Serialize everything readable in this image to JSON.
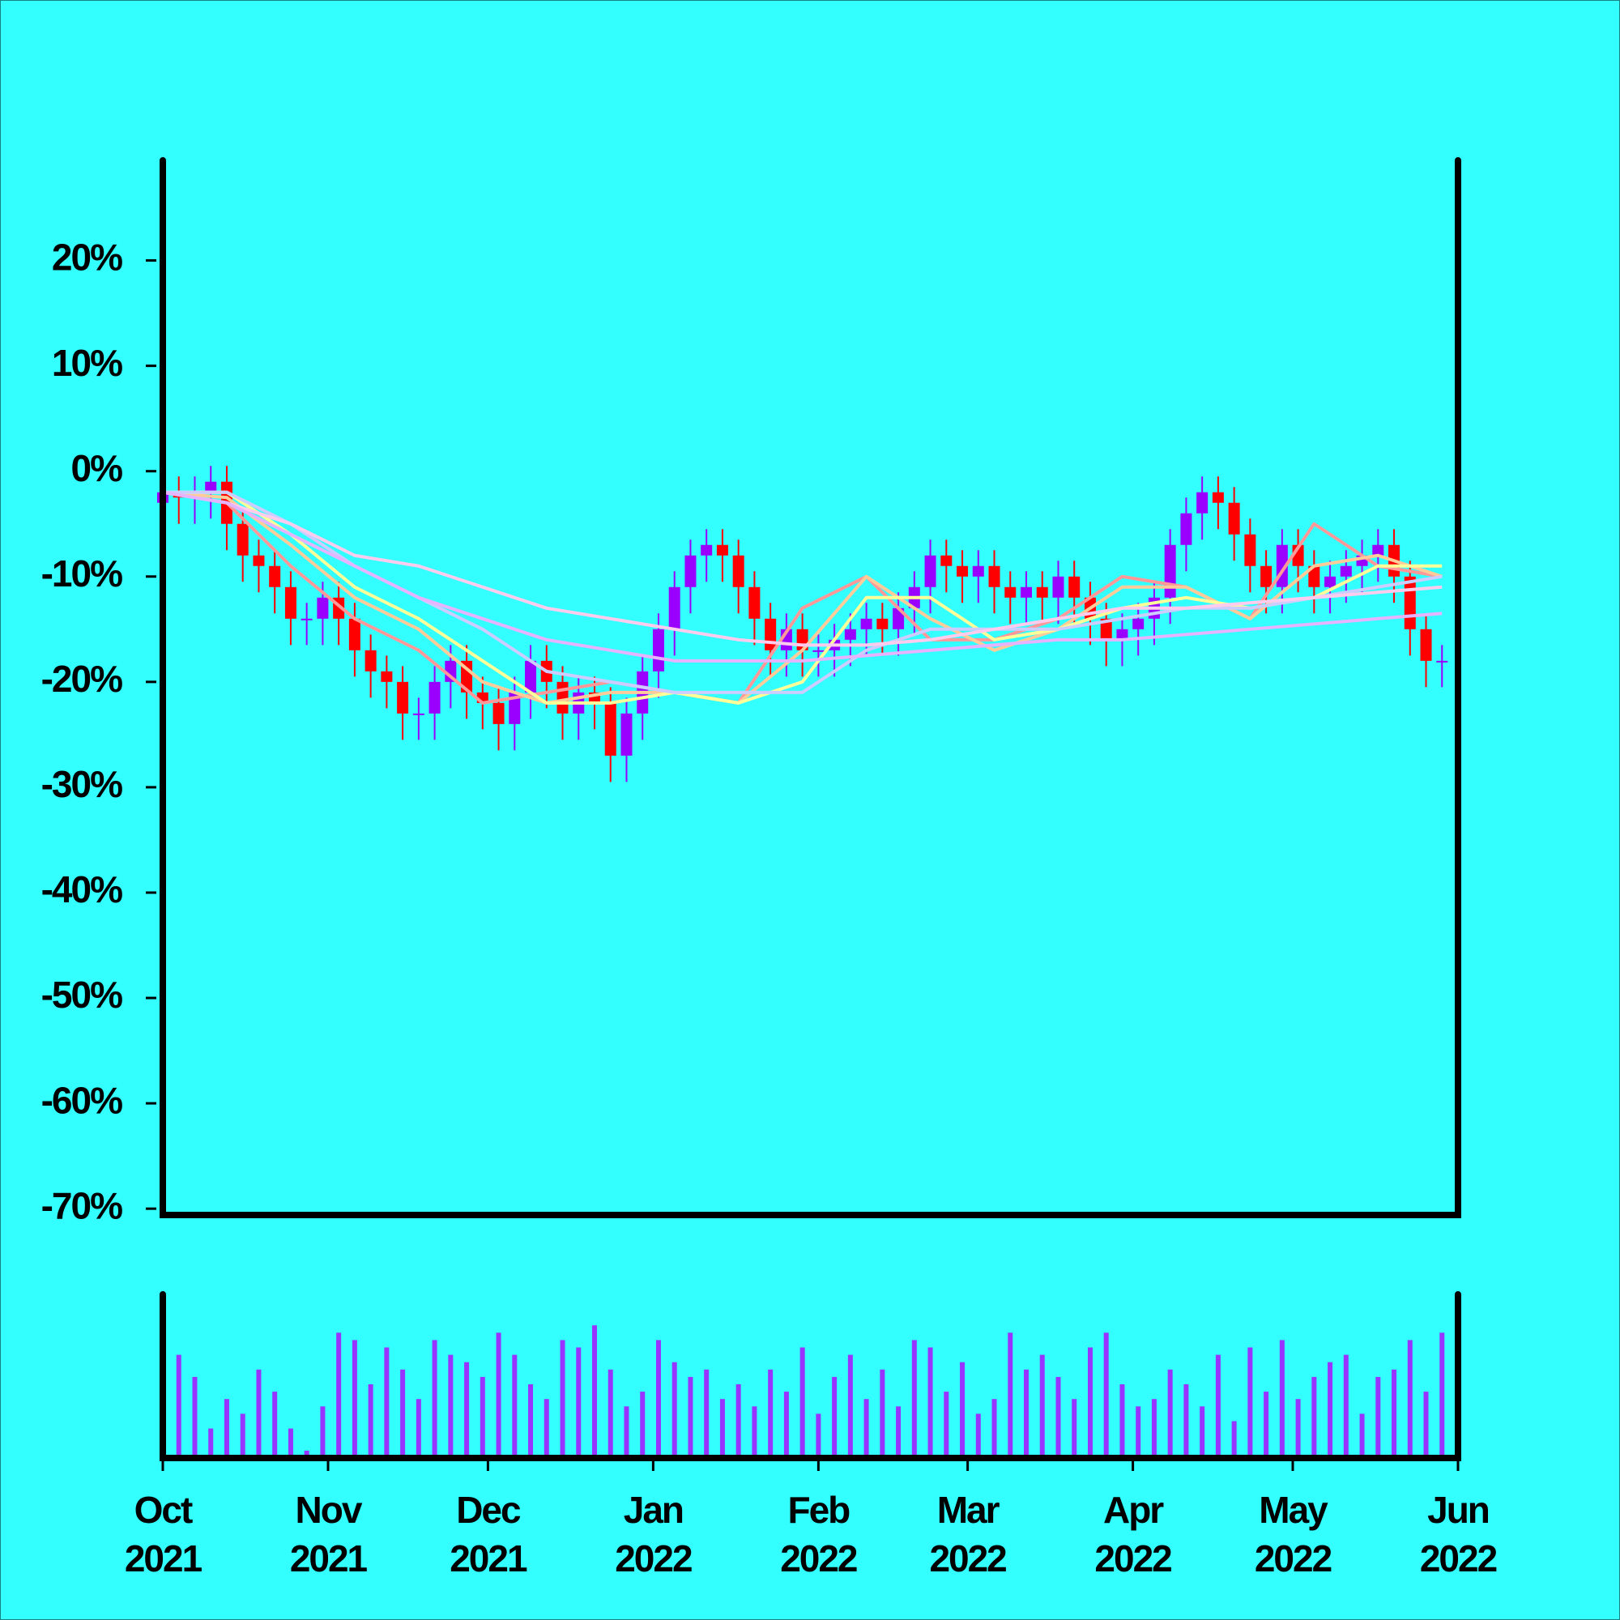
{
  "chart_data": {
    "type": "candlestick",
    "x": [
      0,
      3,
      6,
      9,
      12,
      15,
      18,
      21,
      24,
      27,
      30,
      33,
      36,
      39,
      42,
      45,
      48,
      51,
      54,
      57,
      60,
      63,
      66,
      69,
      72,
      75,
      78,
      81,
      84,
      87,
      90,
      93,
      96,
      99,
      102,
      105,
      108,
      111,
      114,
      117,
      120,
      123,
      126,
      129,
      132,
      135,
      138,
      141,
      144,
      147,
      150,
      153,
      156,
      159,
      162,
      165,
      168,
      171,
      174,
      177,
      180,
      183,
      186,
      189,
      192,
      195,
      198,
      201,
      204,
      207,
      210,
      213,
      216,
      219,
      222,
      225,
      228,
      231,
      234,
      237,
      240
    ],
    "open": [
      -3,
      -2,
      -2.5,
      -2,
      -1,
      -5,
      -8,
      -9,
      -11,
      -14,
      -14,
      -12,
      -14,
      -17,
      -19,
      -20,
      -23,
      -23,
      -20,
      -18,
      -21,
      -22,
      -24,
      -21,
      -18,
      -20,
      -23,
      -21,
      -22,
      -27,
      -23,
      -19,
      -15,
      -11,
      -8,
      -7,
      -8,
      -11,
      -14,
      -17,
      -15,
      -17,
      -17,
      -16,
      -15,
      -14,
      -15,
      -13,
      -11,
      -8,
      -9,
      -10,
      -9,
      -11,
      -12,
      -11,
      -12,
      -10,
      -12,
      -14,
      -16,
      -15,
      -14,
      -12,
      -7,
      -4,
      -2,
      -3,
      -6,
      -9,
      -11,
      -7,
      -9,
      -11,
      -10,
      -9,
      -8,
      -7,
      -10,
      -15,
      -18
    ],
    "high": [
      -0.5,
      -0.5,
      -0.5,
      0.5,
      0.5,
      -3.5,
      -6.5,
      -7.5,
      -9.5,
      -12.5,
      -10.5,
      -10.5,
      -12.5,
      -15.5,
      -17.5,
      -18.5,
      -21.5,
      -18.5,
      -16.5,
      -16.5,
      -19.5,
      -20.5,
      -19.5,
      -16.5,
      -16.5,
      -18.5,
      -19.5,
      -19.5,
      -20.5,
      -21.5,
      -17.5,
      -13.5,
      -9.5,
      -6.5,
      -5.5,
      -5.5,
      -6.5,
      -9.5,
      -12.5,
      -13.5,
      -13.5,
      -15.5,
      -14.5,
      -13.5,
      -12.5,
      -12.5,
      -11.5,
      -9.5,
      -6.5,
      -6.5,
      -7.5,
      -7.5,
      -7.5,
      -9.5,
      -9.5,
      -9.5,
      -8.5,
      -8.5,
      -10.5,
      -12.5,
      -13.5,
      -12.5,
      -10.5,
      -5.5,
      -2.5,
      -0.5,
      -0.5,
      -1.5,
      -4.5,
      -7.5,
      -5.5,
      -5.5,
      -7.5,
      -8.5,
      -7.5,
      -6.5,
      -5.5,
      -5.5,
      -8.5,
      -13.5,
      -16.5
    ],
    "low": [
      -5.5,
      -5,
      -5,
      -4.5,
      -7.5,
      -10.5,
      -11.5,
      -13.5,
      -16.5,
      -16.5,
      -16.5,
      -16.5,
      -19.5,
      -21.5,
      -22.5,
      -25.5,
      -25.5,
      -25.5,
      -22.5,
      -23.5,
      -24.5,
      -26.5,
      -26.5,
      -23.5,
      -22.5,
      -25.5,
      -25.5,
      -24.5,
      -29.5,
      -29.5,
      -25.5,
      -21.5,
      -17.5,
      -13.5,
      -10.5,
      -10.5,
      -13.5,
      -16.5,
      -19.5,
      -19.5,
      -19.5,
      -19.5,
      -19.5,
      -18.5,
      -17.5,
      -17.5,
      -17.5,
      -15.5,
      -13.5,
      -11.5,
      -12.5,
      -12.5,
      -13.5,
      -14.5,
      -14.5,
      -14.5,
      -14.5,
      -14.5,
      -16.5,
      -18.5,
      -18.5,
      -17.5,
      -16.5,
      -14.5,
      -9.5,
      -6.5,
      -5.5,
      -8.5,
      -11.5,
      -13.5,
      -13.5,
      -11.5,
      -13.5,
      -13.5,
      -12.5,
      -11.5,
      -10.5,
      -12.5,
      -17.5,
      -20.5,
      -20.5
    ],
    "close": [
      -2,
      -2.5,
      -2,
      -1,
      -5,
      -8,
      -9,
      -11,
      -14,
      -14,
      -12,
      -14,
      -17,
      -19,
      -20,
      -23,
      -23,
      -20,
      -18,
      -21,
      -22,
      -24,
      -21,
      -18,
      -20,
      -23,
      -21,
      -22,
      -27,
      -23,
      -19,
      -15,
      -11,
      -8,
      -7,
      -8,
      -11,
      -14,
      -17,
      -15,
      -17,
      -17,
      -16,
      -15,
      -14,
      -15,
      -13,
      -11,
      -8,
      -9,
      -10,
      -9,
      -11,
      -12,
      -11,
      -12,
      -10,
      -12,
      -14,
      -16,
      -15,
      -14,
      -12,
      -7,
      -4,
      -2,
      -3,
      -6,
      -9,
      -11,
      -7,
      -9,
      -11,
      -10,
      -9,
      -8,
      -7,
      -10,
      -15,
      -18,
      -18
    ],
    "colors": {
      "up": "#9900ff",
      "down": "#ff0000"
    },
    "xlim": [
      0,
      243
    ],
    "xticks": [
      {
        "value": 0,
        "label": "Oct 2021"
      },
      {
        "value": 31,
        "label": "Nov 2021"
      },
      {
        "value": 61,
        "label": "Dec 2021"
      },
      {
        "value": 92,
        "label": "Jan 2022"
      },
      {
        "value": 123,
        "label": "Feb 2022"
      },
      {
        "value": 151,
        "label": "Mar 2022"
      },
      {
        "value": 182,
        "label": "Apr 2022"
      },
      {
        "value": 212,
        "label": "May 2022"
      },
      {
        "value": 243,
        "label": "Jun 2022"
      }
    ],
    "ylim": [
      -70.6,
      29.5
    ],
    "yticks": [
      {
        "value": 20,
        "label": "20%"
      },
      {
        "value": 10,
        "label": "10%"
      },
      {
        "value": 0,
        "label": "0%"
      },
      {
        "value": -10,
        "label": "-10%"
      },
      {
        "value": -20,
        "label": "-20%"
      },
      {
        "value": -30,
        "label": "-30%"
      },
      {
        "value": -40,
        "label": "-40%"
      },
      {
        "value": -50,
        "label": "-50%"
      },
      {
        "value": -60,
        "label": "-60%"
      },
      {
        "value": -70,
        "label": "-70%"
      }
    ],
    "lines": {
      "x": [
        0,
        12,
        24,
        36,
        48,
        60,
        72,
        84,
        96,
        108,
        120,
        132,
        144,
        156,
        168,
        180,
        192,
        204,
        216,
        228,
        240
      ],
      "series": [
        {
          "color": "#ff9999",
          "values": [
            -2,
            -3,
            -9,
            -14,
            -17,
            -22,
            -21,
            -20,
            -21,
            -22,
            -13,
            -10,
            -16,
            -16,
            -14,
            -10,
            -11,
            -14,
            -5,
            -9,
            -10
          ]
        },
        {
          "color": "#ffcc99",
          "values": [
            -2,
            -2.5,
            -7,
            -12,
            -15,
            -20,
            -22,
            -21,
            -21,
            -22,
            -17,
            -10,
            -14,
            -17,
            -15,
            -11,
            -11,
            -14,
            -9,
            -8,
            -10
          ]
        },
        {
          "color": "#ffff99",
          "values": [
            -2,
            -2,
            -6,
            -11,
            -14,
            -18,
            -22,
            -22,
            -21,
            -22,
            -20,
            -12,
            -12,
            -16,
            -15,
            -13,
            -12,
            -13,
            -12,
            -9,
            -9
          ]
        },
        {
          "color": "#ccccff",
          "values": [
            -2,
            -2,
            -5,
            -9,
            -12,
            -15,
            -19,
            -20,
            -21,
            -21,
            -21,
            -17,
            -15,
            -15,
            -15,
            -14,
            -13,
            -13,
            -12,
            -11,
            -10
          ]
        },
        {
          "color": "#ffccee",
          "values": [
            -2,
            -3,
            -5,
            -8,
            -9,
            -11,
            -13,
            -14,
            -15,
            -16,
            -16.5,
            -16.5,
            -16,
            -15,
            -14,
            -13,
            -13,
            -12.5,
            -12,
            -11.5,
            -11
          ]
        },
        {
          "color": "#e6b3ff",
          "values": [
            -2,
            -3,
            -6,
            -9,
            -12,
            -14,
            -16,
            -17,
            -18,
            -18,
            -18,
            -17.5,
            -17,
            -16.5,
            -16,
            -16,
            -15.5,
            -15,
            -14.5,
            -14,
            -13.5
          ]
        }
      ]
    },
    "volume": {
      "color": "#9933ff",
      "ylim": [
        0,
        100
      ],
      "values": [
        35,
        70,
        55,
        20,
        40,
        30,
        60,
        45,
        20,
        5,
        35,
        85,
        80,
        50,
        75,
        60,
        40,
        80,
        70,
        65,
        55,
        85,
        70,
        50,
        40,
        80,
        75,
        90,
        60,
        35,
        45,
        80,
        65,
        55,
        60,
        40,
        50,
        35,
        60,
        45,
        75,
        30,
        55,
        70,
        40,
        60,
        35,
        80,
        75,
        45,
        65,
        30,
        40,
        85,
        60,
        70,
        55,
        40,
        75,
        85,
        50,
        35,
        40,
        60,
        50,
        35,
        70,
        25,
        75,
        45,
        80,
        40,
        55,
        65,
        70,
        30,
        55,
        60,
        80,
        45,
        85
      ]
    }
  }
}
